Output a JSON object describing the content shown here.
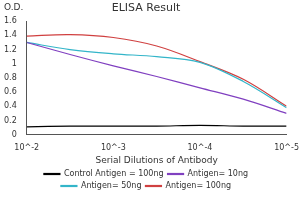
{
  "chart_data": {
    "type": "line",
    "title": "ELISA Result",
    "ylabel": "O.D.",
    "xlabel": "Serial Dilutions of Antibody",
    "log": "x",
    "x": [
      0.01,
      0.00316,
      0.001,
      0.000316,
      0.0001,
      3.16e-05,
      1e-05
    ],
    "xlim": [
      0.01,
      1e-05
    ],
    "xticks": [
      {
        "value": 0.01,
        "label": "10^-2"
      },
      {
        "value": 0.001,
        "label": "10^-3"
      },
      {
        "value": 0.0001,
        "label": "10^-4"
      },
      {
        "value": 1e-05,
        "label": "10^-5"
      }
    ],
    "ylim": [
      0,
      1.6
    ],
    "yticks": [
      0,
      0.2,
      0.4,
      0.6,
      0.8,
      1,
      1.2,
      1.4,
      1.6
    ],
    "grid": false,
    "legend": "bottom",
    "series": [
      {
        "name": "Control Antigen = 100ng",
        "color": "#000000",
        "values": [
          0.11,
          0.12,
          0.12,
          0.12,
          0.13,
          0.12,
          0.12
        ]
      },
      {
        "name": "Antigen= 10ng",
        "color": "#8040c0",
        "values": [
          1.3,
          1.13,
          0.97,
          0.82,
          0.66,
          0.5,
          0.3
        ]
      },
      {
        "name": "Antigen= 50ng",
        "color": "#33b5c9",
        "values": [
          1.3,
          1.2,
          1.14,
          1.1,
          1.02,
          0.75,
          0.38
        ]
      },
      {
        "name": "Antigen= 100ng",
        "color": "#d04040",
        "values": [
          1.39,
          1.41,
          1.37,
          1.25,
          1.03,
          0.78,
          0.4
        ]
      }
    ]
  }
}
